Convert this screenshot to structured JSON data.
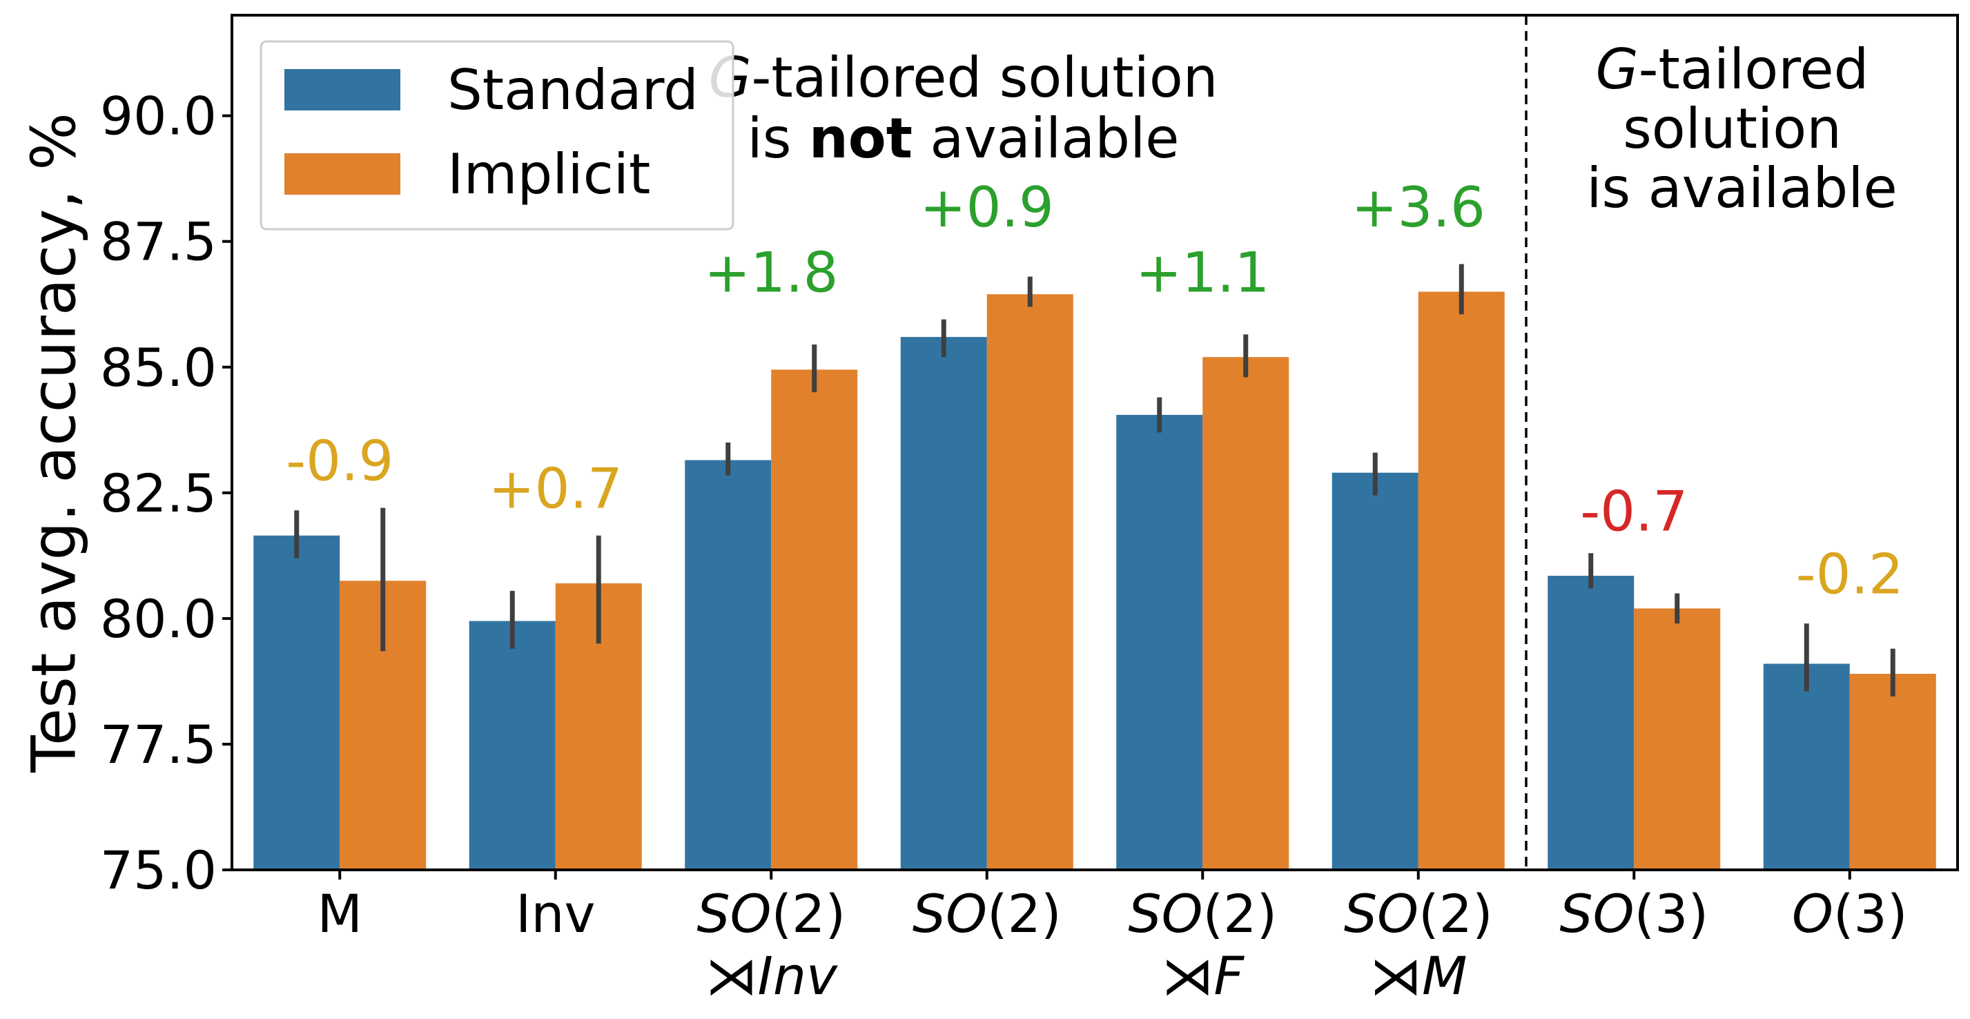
{
  "chart_data": {
    "type": "bar",
    "ylabel": "Test avg. accuracy, %",
    "ylim": [
      75.0,
      92.0
    ],
    "yticks": [
      "75.0",
      "77.5",
      "80.0",
      "82.5",
      "85.0",
      "87.5",
      "90.0"
    ],
    "grid": false,
    "legend_position": "top-left",
    "categories": [
      {
        "line1": [
          {
            "t": "M",
            "i": false
          }
        ],
        "line2": []
      },
      {
        "line1": [
          {
            "t": "Inv",
            "i": false
          }
        ],
        "line2": []
      },
      {
        "line1": [
          {
            "t": "SO",
            "i": true
          },
          {
            "t": "(2)",
            "i": false
          }
        ],
        "line2": [
          {
            "t": "⋊",
            "i": false
          },
          {
            "t": "Inv",
            "i": true
          }
        ]
      },
      {
        "line1": [
          {
            "t": "SO",
            "i": true
          },
          {
            "t": "(2)",
            "i": false
          }
        ],
        "line2": []
      },
      {
        "line1": [
          {
            "t": "SO",
            "i": true
          },
          {
            "t": "(2)",
            "i": false
          }
        ],
        "line2": [
          {
            "t": "⋊",
            "i": false
          },
          {
            "t": "F",
            "i": true
          }
        ]
      },
      {
        "line1": [
          {
            "t": "SO",
            "i": true
          },
          {
            "t": "(2)",
            "i": false
          }
        ],
        "line2": [
          {
            "t": "⋊",
            "i": false
          },
          {
            "t": "M",
            "i": true
          }
        ]
      },
      {
        "line1": [
          {
            "t": "SO",
            "i": true
          },
          {
            "t": "(3)",
            "i": false
          }
        ],
        "line2": []
      },
      {
        "line1": [
          {
            "t": "O",
            "i": true
          },
          {
            "t": "(3)",
            "i": false
          }
        ],
        "line2": []
      }
    ],
    "series": [
      {
        "name": "Standard",
        "color": "#3274a1",
        "values": [
          81.65,
          79.95,
          83.15,
          85.6,
          84.05,
          82.9,
          80.85,
          79.1
        ],
        "err_low": [
          81.2,
          79.4,
          82.85,
          85.2,
          83.7,
          82.45,
          80.6,
          78.55
        ],
        "err_high": [
          82.15,
          80.55,
          83.5,
          85.95,
          84.4,
          83.3,
          81.3,
          79.9
        ]
      },
      {
        "name": "Implicit",
        "color": "#e1812c",
        "values": [
          80.75,
          80.7,
          84.95,
          86.45,
          85.2,
          86.5,
          80.2,
          78.9
        ],
        "err_low": [
          79.35,
          79.5,
          84.5,
          86.2,
          84.8,
          86.05,
          79.9,
          78.45
        ],
        "err_high": [
          82.2,
          81.65,
          85.45,
          86.8,
          85.65,
          87.05,
          80.5,
          79.4
        ]
      }
    ],
    "deltas": [
      {
        "text": "-0.9",
        "color": "#daa520",
        "y": 82.75
      },
      {
        "text": "+0.7",
        "color": "#daa520",
        "y": 82.2
      },
      {
        "text": "+1.8",
        "color": "#2ca02c",
        "y": 86.5
      },
      {
        "text": "+0.9",
        "color": "#2ca02c",
        "y": 87.8
      },
      {
        "text": "+1.1",
        "color": "#2ca02c",
        "y": 86.5
      },
      {
        "text": "+3.6",
        "color": "#2ca02c",
        "y": 87.8
      },
      {
        "text": "-0.7",
        "color": "#d62728",
        "y": 81.75
      },
      {
        "text": "-0.2",
        "color": "#daa520",
        "y": 80.5
      }
    ],
    "annotations": {
      "left_region": {
        "line1_prefix": "G",
        "line1_rest": "-tailored solution",
        "line2_pre": "is ",
        "line2_bold": "not",
        "line2_post": " available"
      },
      "right_region": {
        "line1_prefix": "G",
        "line1_rest": "-tailored",
        "line2": "solution",
        "line3": "is available"
      }
    },
    "divider_after_category": 5
  }
}
